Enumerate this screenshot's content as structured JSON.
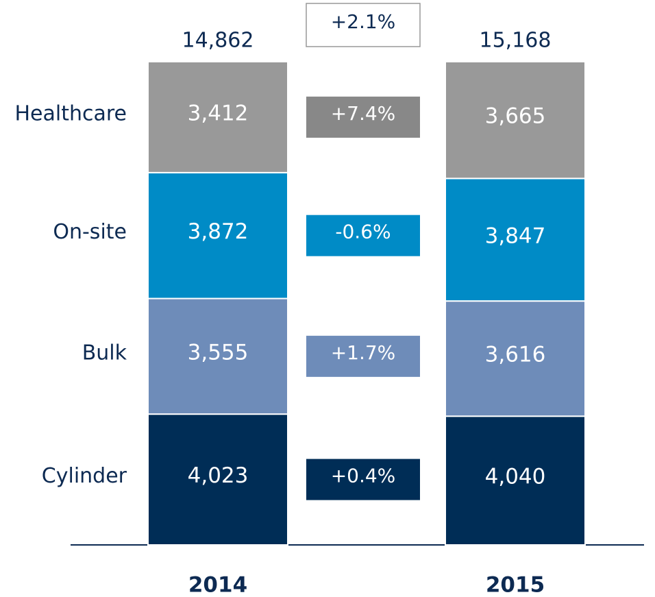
{
  "chart_data": {
    "type": "stacked-bar",
    "categories": [
      "2014",
      "2015"
    ],
    "totals": [
      14862,
      15168
    ],
    "total_labels": [
      "14,862",
      "15,168"
    ],
    "total_change": "+2.1%",
    "series": [
      {
        "name": "Cylinder",
        "color": "#002d56",
        "values": [
          4023,
          4040
        ],
        "value_labels": [
          "4,023",
          "4,040"
        ],
        "change": "+0.4%"
      },
      {
        "name": "Bulk",
        "color": "#6e8cb9",
        "values": [
          3555,
          3616
        ],
        "value_labels": [
          "3,555",
          "3,616"
        ],
        "change": "+1.7%"
      },
      {
        "name": "On-site",
        "color": "#008bc6",
        "values": [
          3872,
          3847
        ],
        "value_labels": [
          "3,872",
          "3,847"
        ],
        "change": "-0.6%"
      },
      {
        "name": "Healthcare",
        "color": "#999999",
        "values": [
          3412,
          3665
        ],
        "value_labels": [
          "3,412",
          "3,665"
        ],
        "change": "+7.4%"
      }
    ]
  }
}
